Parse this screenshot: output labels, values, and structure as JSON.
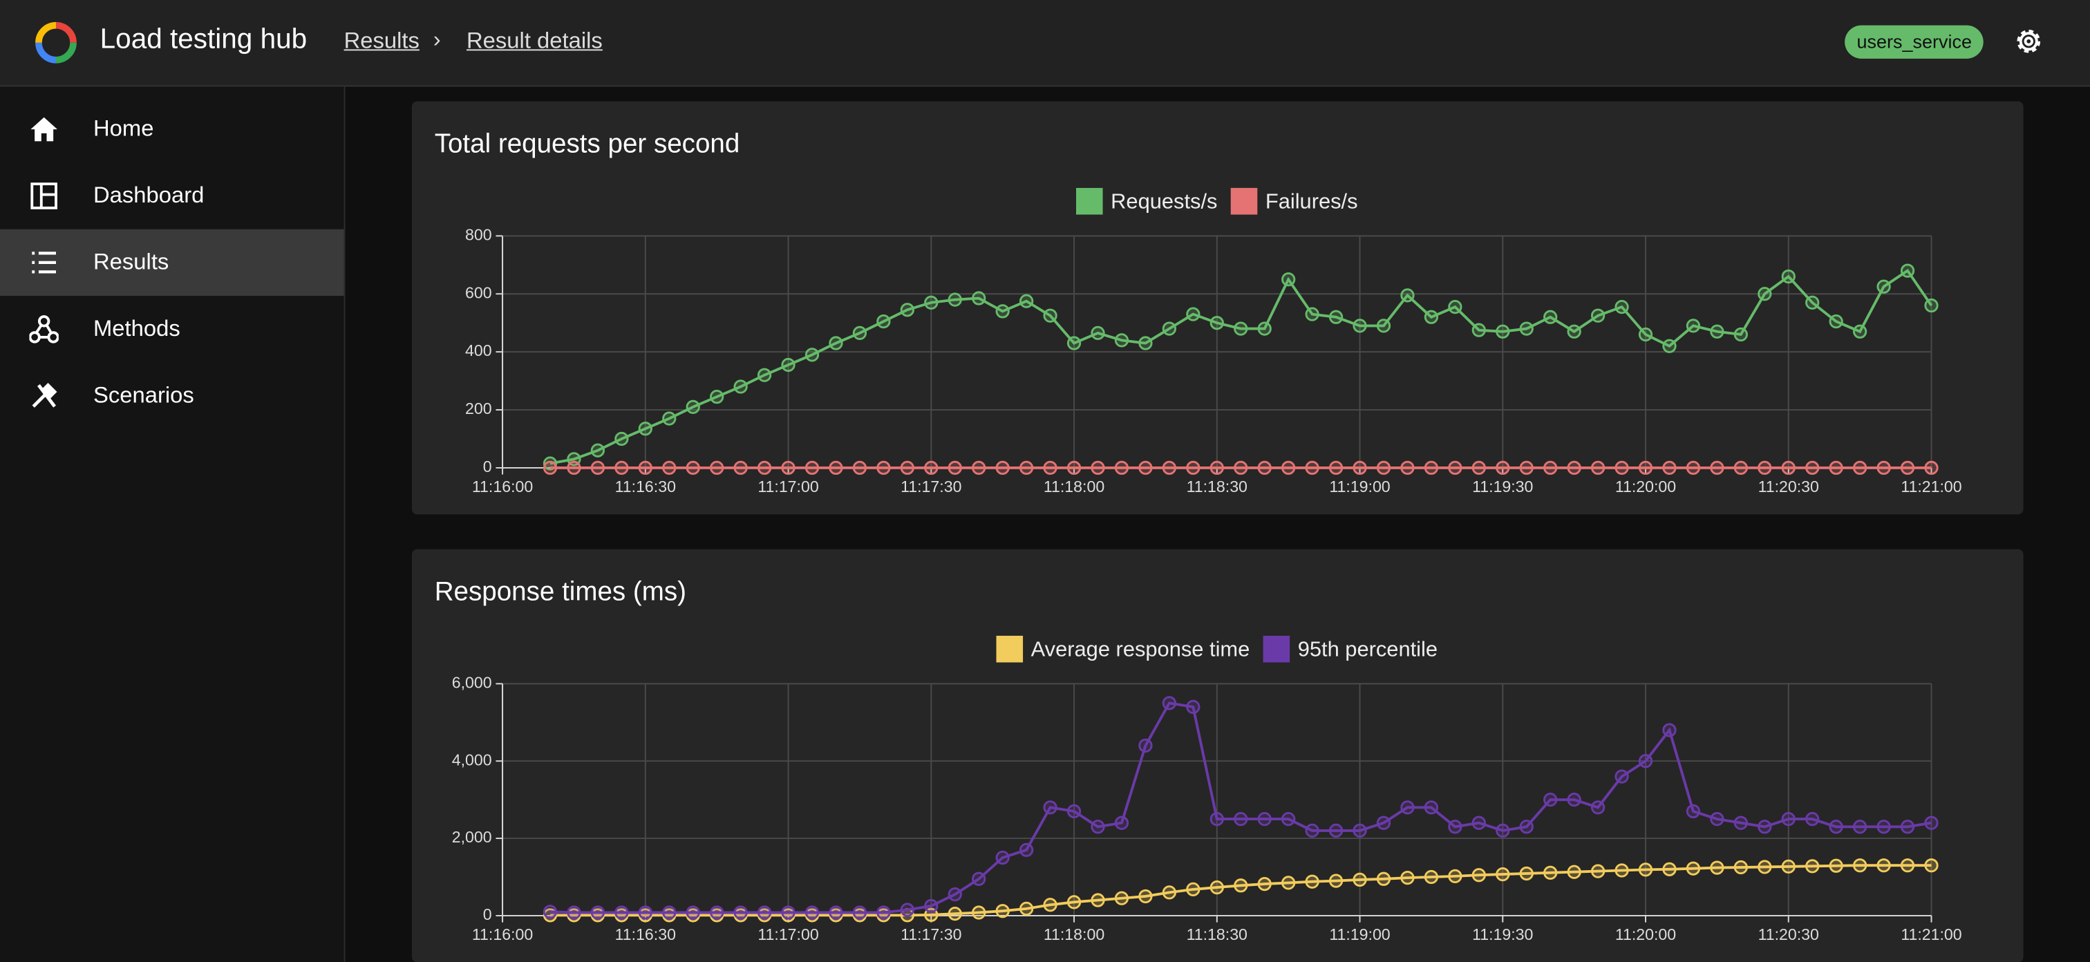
{
  "header": {
    "title": "Load testing hub",
    "breadcrumb": [
      "Results",
      "Result details"
    ],
    "service": "users_service"
  },
  "sidebar": {
    "items": [
      "Home",
      "Dashboard",
      "Results",
      "Methods",
      "Scenarios"
    ],
    "selected": "Results"
  },
  "chart_data": [
    {
      "type": "line",
      "title": "Total requests per second",
      "legend": "top",
      "x": [
        "11:16:10",
        "11:16:15",
        "11:16:20",
        "11:16:25",
        "11:16:30",
        "11:16:35",
        "11:16:40",
        "11:16:45",
        "11:16:50",
        "11:16:55",
        "11:17:00",
        "11:17:05",
        "11:17:10",
        "11:17:15",
        "11:17:20",
        "11:17:25",
        "11:17:30",
        "11:17:35",
        "11:17:40",
        "11:17:45",
        "11:17:50",
        "11:17:55",
        "11:18:00",
        "11:18:05",
        "11:18:10",
        "11:18:15",
        "11:18:20",
        "11:18:25",
        "11:18:30",
        "11:18:35",
        "11:18:40",
        "11:18:45",
        "11:18:50",
        "11:18:55",
        "11:19:00",
        "11:19:05",
        "11:19:10",
        "11:19:15",
        "11:19:20",
        "11:19:25",
        "11:19:30",
        "11:19:35",
        "11:19:40",
        "11:19:45",
        "11:19:50",
        "11:19:55",
        "11:20:00",
        "11:20:05",
        "11:20:10",
        "11:20:15",
        "11:20:20",
        "11:20:25",
        "11:20:30",
        "11:20:35",
        "11:20:40",
        "11:20:45",
        "11:20:50",
        "11:20:55",
        "11:21:00"
      ],
      "xlim": [
        "11:16:00",
        "11:21:00"
      ],
      "xticks": [
        "11:16:00",
        "11:16:30",
        "11:17:00",
        "11:17:30",
        "11:18:00",
        "11:18:30",
        "11:19:00",
        "11:19:30",
        "11:20:00",
        "11:20:30",
        "11:21:00"
      ],
      "ylim": [
        0,
        800
      ],
      "yticks": [
        0,
        200,
        400,
        600,
        800
      ],
      "grid": true,
      "series": [
        {
          "name": "Requests/s",
          "color": "#66bb6a",
          "values": [
            15,
            30,
            60,
            100,
            135,
            170,
            210,
            245,
            280,
            320,
            355,
            390,
            430,
            465,
            505,
            545,
            570,
            580,
            585,
            540,
            575,
            525,
            430,
            465,
            440,
            430,
            480,
            530,
            500,
            480,
            480,
            650,
            530,
            520,
            490,
            490,
            595,
            520,
            555,
            475,
            470,
            480,
            520,
            470,
            525,
            555,
            460,
            420,
            490,
            470,
            460,
            600,
            660,
            570,
            505,
            470,
            625,
            680,
            560
          ]
        },
        {
          "name": "Failures/s",
          "color": "#e57373",
          "values": [
            0,
            0,
            0,
            0,
            0,
            0,
            0,
            0,
            0,
            0,
            0,
            0,
            0,
            0,
            0,
            0,
            0,
            0,
            0,
            0,
            0,
            0,
            0,
            0,
            0,
            0,
            0,
            0,
            0,
            0,
            0,
            0,
            0,
            0,
            0,
            0,
            0,
            0,
            0,
            0,
            0,
            0,
            0,
            0,
            0,
            0,
            0,
            0,
            0,
            0,
            0,
            0,
            0,
            0,
            0,
            0,
            0,
            0,
            0
          ]
        }
      ]
    },
    {
      "type": "line",
      "title": "Response times (ms)",
      "legend": "top",
      "x": [
        "11:16:10",
        "11:16:15",
        "11:16:20",
        "11:16:25",
        "11:16:30",
        "11:16:35",
        "11:16:40",
        "11:16:45",
        "11:16:50",
        "11:16:55",
        "11:17:00",
        "11:17:05",
        "11:17:10",
        "11:17:15",
        "11:17:20",
        "11:17:25",
        "11:17:30",
        "11:17:35",
        "11:17:40",
        "11:17:45",
        "11:17:50",
        "11:17:55",
        "11:18:00",
        "11:18:05",
        "11:18:10",
        "11:18:15",
        "11:18:20",
        "11:18:25",
        "11:18:30",
        "11:18:35",
        "11:18:40",
        "11:18:45",
        "11:18:50",
        "11:18:55",
        "11:19:00",
        "11:19:05",
        "11:19:10",
        "11:19:15",
        "11:19:20",
        "11:19:25",
        "11:19:30",
        "11:19:35",
        "11:19:40",
        "11:19:45",
        "11:19:50",
        "11:19:55",
        "11:20:00",
        "11:20:05",
        "11:20:10",
        "11:20:15",
        "11:20:20",
        "11:20:25",
        "11:20:30",
        "11:20:35",
        "11:20:40",
        "11:20:45",
        "11:20:50",
        "11:20:55",
        "11:21:00"
      ],
      "xlim": [
        "11:16:00",
        "11:21:00"
      ],
      "xticks": [
        "11:16:00",
        "11:16:30",
        "11:17:00",
        "11:17:30",
        "11:18:00",
        "11:18:30",
        "11:19:00",
        "11:19:30",
        "11:20:00",
        "11:20:30",
        "11:21:00"
      ],
      "ylim": [
        0,
        6000
      ],
      "yticks": [
        0,
        {
          "value": 2000,
          "label": "2,000"
        },
        {
          "value": 4000,
          "label": "4,000"
        },
        {
          "value": 6000,
          "label": "6,000"
        }
      ],
      "grid": true,
      "series": [
        {
          "name": "Average response time",
          "color": "#f2cc5c",
          "values": [
            10,
            10,
            10,
            10,
            10,
            10,
            10,
            10,
            10,
            10,
            10,
            10,
            10,
            10,
            10,
            10,
            20,
            50,
            80,
            120,
            180,
            280,
            350,
            400,
            450,
            500,
            600,
            680,
            730,
            780,
            820,
            850,
            880,
            900,
            930,
            950,
            980,
            1000,
            1020,
            1050,
            1070,
            1090,
            1110,
            1130,
            1150,
            1170,
            1190,
            1200,
            1220,
            1240,
            1250,
            1260,
            1270,
            1280,
            1290,
            1300,
            1300,
            1300,
            1300
          ]
        },
        {
          "name": "95th percentile",
          "color": "#6a3aa8",
          "values": [
            100,
            80,
            80,
            80,
            80,
            80,
            80,
            80,
            80,
            80,
            80,
            80,
            80,
            80,
            80,
            150,
            250,
            550,
            950,
            1500,
            1700,
            2800,
            2700,
            2300,
            2400,
            4400,
            5500,
            5400,
            2500,
            2500,
            2500,
            2500,
            2200,
            2200,
            2200,
            2400,
            2800,
            2800,
            2300,
            2400,
            2200,
            2300,
            3000,
            3000,
            2800,
            3600,
            4000,
            4800,
            2700,
            2500,
            2400,
            2300,
            2500,
            2500,
            2300,
            2300,
            2300,
            2300,
            2400
          ]
        }
      ]
    }
  ]
}
